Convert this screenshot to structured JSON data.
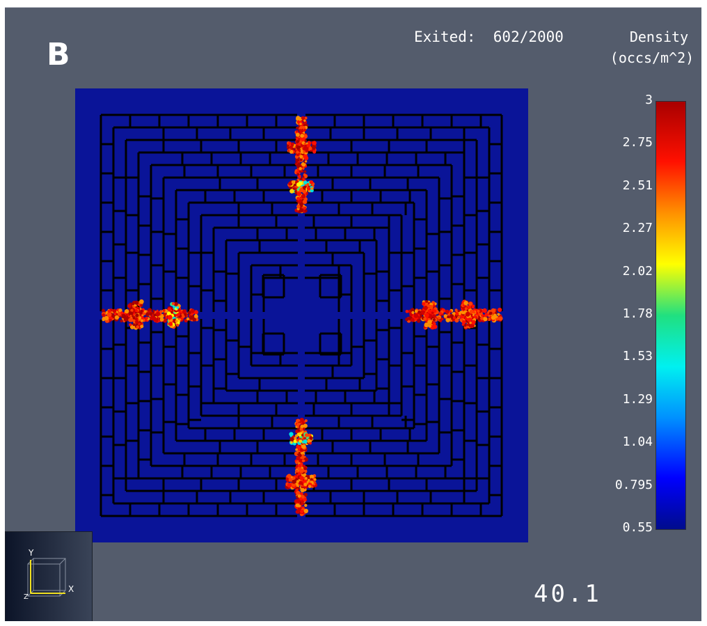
{
  "panel_label": "B",
  "status": {
    "exited_text": "Exited:  602/2000"
  },
  "legend": {
    "title_line1": "Density",
    "title_line2": "(occs/m^2)",
    "ticks": [
      "3",
      "2.75",
      "2.51",
      "2.27",
      "2.02",
      "1.78",
      "1.53",
      "1.29",
      "1.04",
      "0.795",
      "0.55"
    ],
    "range": [
      0.55,
      3
    ],
    "colormap": [
      "#000c8c",
      "#0000ff",
      "#00f0f0",
      "#ffff00",
      "#ff1000",
      "#a80000"
    ]
  },
  "axis_triad": {
    "x_label": "X",
    "y_label": "Y",
    "z_label": "Z"
  },
  "time_readout": "40.1",
  "colors": {
    "background": "#545c6c",
    "floor": "#0a1498",
    "walls": "#000000",
    "axis_triad": "#f0e020"
  }
}
